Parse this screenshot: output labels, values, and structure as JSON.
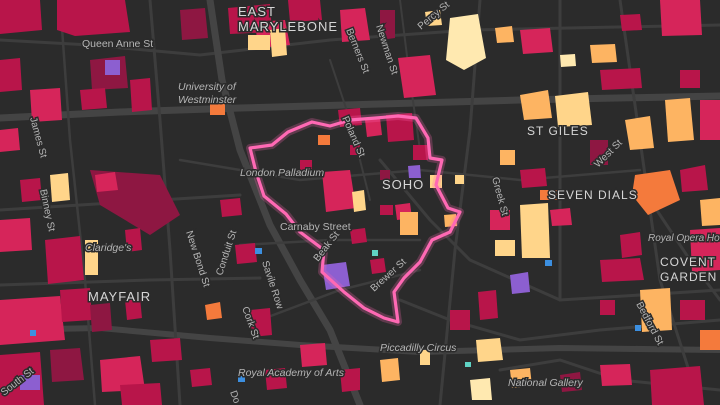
{
  "map": {
    "labels": {
      "east_marylebone": "EAST\nMARYLEBONE",
      "queen_anne_st": "Queen Anne St",
      "berners_st": "Berners St",
      "newman_st": "Newman St",
      "percy_st": "Percy St",
      "university_westminster": "University of\nWestminster",
      "st_giles": "ST GILES",
      "james_st": "James St",
      "poland_st": "Poland St",
      "london_palladium": "London Palladium",
      "soho": "SOHO",
      "greek_st": "Greek St",
      "west_st": "West St",
      "seven_dials": "SEVEN DIALS",
      "binney_st": "Binney St",
      "carnaby_street": "Carnaby Street",
      "claridges": "Claridge's",
      "beak_st": "Beak St",
      "conduit_st": "Conduit St",
      "new_bond_st": "New Bond St",
      "royal_opera_house": "Royal Opera House",
      "covent_garden": "COVENT\nGARDEN",
      "mayfair": "MAYFAIR",
      "savile_row": "Savile Row",
      "brewer_st": "Brewer St",
      "bedford_st": "Bedford St",
      "cork_st": "Cork St",
      "piccadilly_circus": "Piccadilly Circus",
      "south_st": "South St",
      "royal_academy": "Royal Academy of Arts",
      "national_gallery": "National Gallery",
      "dover_st": "Do"
    },
    "highlight_area": "Soho boundary",
    "colors": {
      "background": "#2b2b2b",
      "roads": "#3d3d3d",
      "boundary": "#ff69b4",
      "palette": [
        "#b8154a",
        "#8e1742",
        "#d6255a",
        "#f47a3c",
        "#fdb462",
        "#ffd58a",
        "#ffe9b0",
        "#8c5fd0",
        "#3c8fe0",
        "#5fd3c4"
      ]
    }
  }
}
